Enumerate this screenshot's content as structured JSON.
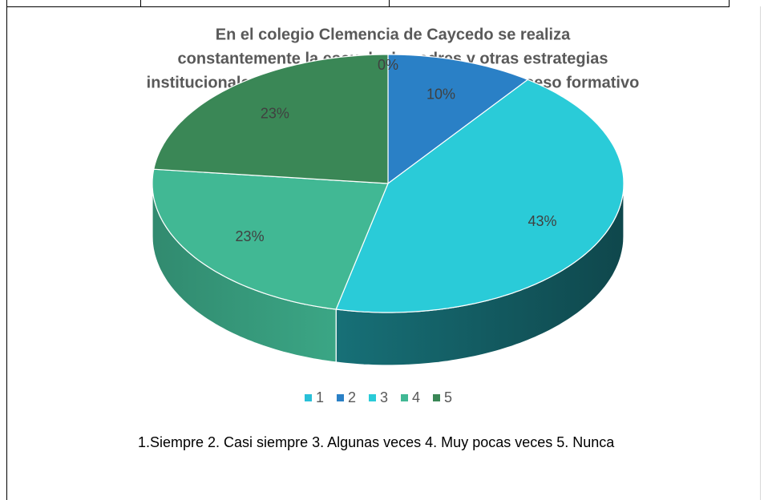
{
  "chart_data": {
    "type": "pie",
    "title": [
      "En el colegio Clemencia de Caycedo se realiza",
      "constantemente la escuela de padres y otras estrategias",
      "institucionales para involucrar a los padres al proceso formativo"
    ],
    "categories": [
      "1",
      "2",
      "3",
      "4",
      "5"
    ],
    "values": [
      0,
      10,
      43,
      23,
      23
    ],
    "value_labels": [
      "0%",
      "10%",
      "43%",
      "23%",
      "23%"
    ],
    "colors": [
      "#29c0d8",
      "#2a80c6",
      "#2acbd8",
      "#41b894",
      "#3a8756"
    ],
    "legend": "bottom",
    "caption": "1.Siempre 2. Casi siempre 3. Algunas veces 4. Muy pocas veces 5. Nunca"
  }
}
